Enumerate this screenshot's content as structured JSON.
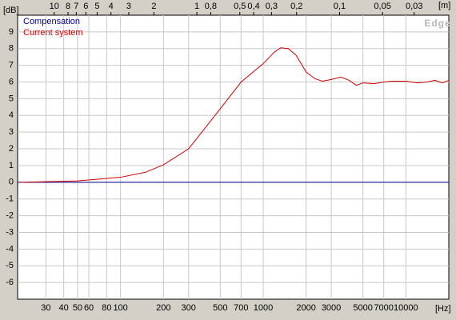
{
  "chart_data": {
    "type": "line",
    "watermark": "Edge",
    "y_unit": "[dB]",
    "x_unit": "[Hz]",
    "x2_unit": "[m]",
    "xscale": "log",
    "grid": true,
    "legend": "upper left",
    "xlim": [
      19,
      20000
    ],
    "ylim": [
      -7,
      10
    ],
    "xticks": [
      30,
      40,
      50,
      60,
      80,
      100,
      200,
      300,
      500,
      700,
      1000,
      2000,
      3000,
      5000,
      7000,
      10000
    ],
    "yticks": [
      -6,
      -5,
      -4,
      -3,
      -2,
      -1,
      0,
      1,
      2,
      3,
      4,
      5,
      6,
      7,
      8,
      9
    ],
    "x2lim": [
      18.05,
      0.01715
    ],
    "x2ticks": [
      10,
      8,
      7,
      6,
      5,
      4,
      3,
      2,
      1,
      {
        "value": 0.8,
        "label": "0,8"
      },
      {
        "value": 0.5,
        "label": "0,5"
      },
      {
        "value": 0.4,
        "label": "0,4"
      },
      {
        "value": 0.3,
        "label": "0,3"
      },
      {
        "value": 0.2,
        "label": "0,2"
      },
      {
        "value": 0.1,
        "label": "0,1"
      },
      {
        "value": 0.05,
        "label": "0,05"
      },
      {
        "value": 0.03,
        "label": "0,03"
      }
    ],
    "series": [
      {
        "name": "Compensation",
        "color": "#00008b",
        "x": [
          19,
          20000
        ],
        "values": [
          0,
          0
        ]
      },
      {
        "name": "Current system",
        "color": "#d40000",
        "x": [
          20,
          50,
          100,
          150,
          200,
          300,
          500,
          700,
          1000,
          1200,
          1330,
          1500,
          1700,
          2000,
          2300,
          2600,
          3000,
          3500,
          4000,
          4500,
          5000,
          6000,
          7000,
          8000,
          10000,
          12000,
          14000,
          16000,
          18000,
          20000
        ],
        "values": [
          0,
          0.08,
          0.3,
          0.6,
          1.05,
          2.0,
          4.4,
          6.0,
          7.1,
          7.8,
          8.05,
          8.0,
          7.6,
          6.6,
          6.2,
          6.05,
          6.15,
          6.3,
          6.1,
          5.8,
          5.95,
          5.9,
          6.0,
          6.05,
          6.05,
          5.95,
          6.0,
          6.1,
          5.95,
          6.1
        ]
      }
    ]
  }
}
